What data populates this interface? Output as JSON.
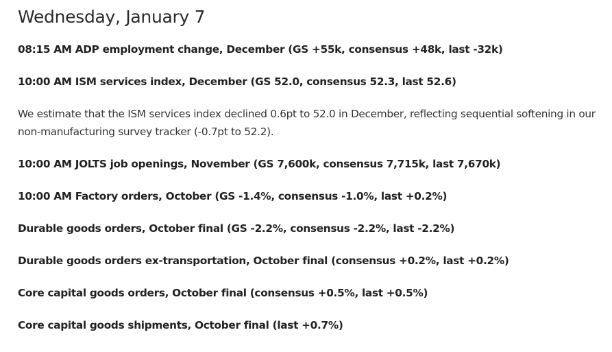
{
  "heading": "Wednesday, January 7",
  "items": [
    {
      "kind": "bold",
      "text": "08:15 AM ADP employment change, December (GS +55k, consensus +48k, last -32k)"
    },
    {
      "kind": "bold",
      "text": "10:00 AM ISM services index, December (GS 52.0, consensus 52.3, last 52.6)"
    },
    {
      "kind": "plain",
      "text": "We estimate that the ISM services index declined 0.6pt to 52.0 in December, reflecting sequential softening in our non-manufacturing survey tracker (-0.7pt to 52.2)."
    },
    {
      "kind": "bold",
      "text": "10:00 AM JOLTS job openings, November (GS 7,600k, consensus 7,715k, last 7,670k)"
    },
    {
      "kind": "bold",
      "text": "10:00 AM Factory orders, October (GS -1.4%, consensus -1.0%, last +0.2%)"
    },
    {
      "kind": "bold",
      "text": "Durable goods orders, October final (GS -2.2%, consensus -2.2%, last -2.2%)"
    },
    {
      "kind": "bold",
      "text": "Durable goods orders ex-transportation, October final (consensus +0.2%, last +0.2%)"
    },
    {
      "kind": "bold",
      "text": "Core capital goods orders, October final (consensus +0.5%, last +0.5%)"
    },
    {
      "kind": "bold",
      "text": "Core capital goods shipments, October final (last +0.7%)"
    }
  ]
}
